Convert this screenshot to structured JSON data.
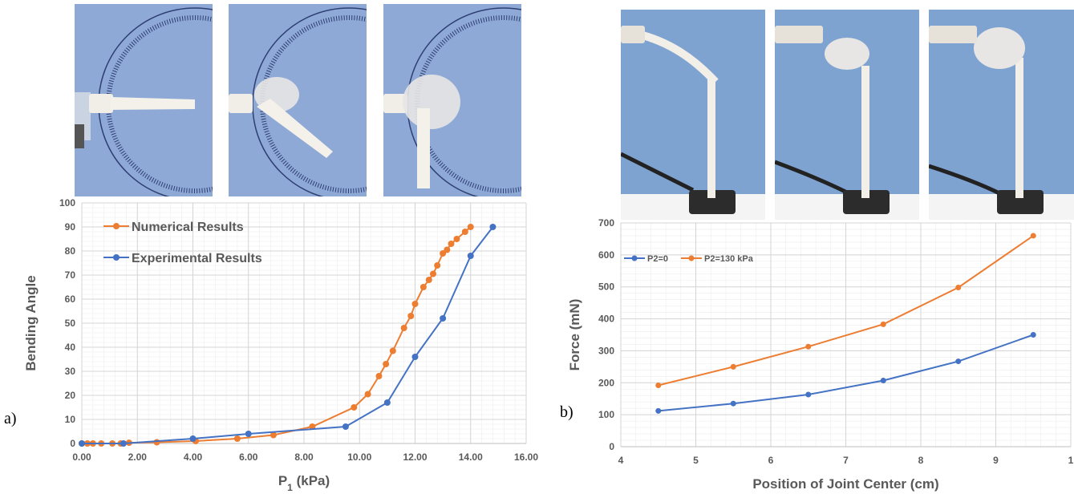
{
  "panels": {
    "a_label": "a)",
    "b_label": "b)"
  },
  "colors": {
    "numerical": "#ED7D31",
    "experimental": "#4472C4",
    "photo_bg": "#8FA8D4",
    "protractor": "#2E3E72",
    "finger": "#F4F1EA"
  },
  "chart_data": [
    {
      "type": "line",
      "title": "",
      "xlabel": "P",
      "xlabel_sub": "1",
      "xlabel_unit": " (kPa)",
      "ylabel": "Bending Angle",
      "xlim": [
        0,
        16
      ],
      "ylim": [
        0,
        100
      ],
      "xticks": [
        "0.00",
        "2.00",
        "4.00",
        "6.00",
        "8.00",
        "10.00",
        "12.00",
        "14.00",
        "16.00"
      ],
      "yticks": [
        "0",
        "10",
        "20",
        "30",
        "40",
        "50",
        "60",
        "70",
        "80",
        "90",
        "100"
      ],
      "grid": true,
      "legend_placement": "top-left",
      "series": [
        {
          "name": "Numerical Results",
          "color": "#ED7D31",
          "x": [
            0,
            0.2,
            0.4,
            0.7,
            1.1,
            1.4,
            1.7,
            2.7,
            4.1,
            5.6,
            6.9,
            8.3,
            9.8,
            10.3,
            10.7,
            10.95,
            11.2,
            11.6,
            11.85,
            12.0,
            12.3,
            12.5,
            12.65,
            12.8,
            13.0,
            13.15,
            13.3,
            13.5,
            13.8,
            14.0
          ],
          "y": [
            0,
            0,
            0,
            0,
            0,
            0,
            0.3,
            0.5,
            1,
            2,
            3.5,
            7,
            15,
            20.5,
            28,
            33,
            38.5,
            48,
            53,
            58,
            65,
            68,
            70.5,
            74,
            79,
            80.5,
            83,
            85,
            88,
            90
          ]
        },
        {
          "name": "Experimental Results",
          "color": "#4472C4",
          "x": [
            0,
            1.5,
            4.0,
            6.0,
            9.5,
            11.0,
            12.0,
            13.0,
            14.0,
            14.8
          ],
          "y": [
            0,
            0,
            2,
            4,
            7,
            17,
            36,
            52,
            78,
            90
          ]
        }
      ]
    },
    {
      "type": "line",
      "title": "",
      "xlabel": "Position of Joint Center (cm)",
      "ylabel": "Force (mN)",
      "xlim": [
        4,
        10
      ],
      "ylim": [
        0,
        700
      ],
      "xticks": [
        "4",
        "5",
        "6",
        "7",
        "8",
        "9",
        "1"
      ],
      "yticks": [
        "0",
        "100",
        "200",
        "300",
        "400",
        "500",
        "600",
        "700"
      ],
      "grid": true,
      "legend_placement": "top-left",
      "series": [
        {
          "name": "P2=0",
          "color": "#4472C4",
          "x": [
            4.5,
            5.5,
            6.5,
            7.5,
            8.5,
            9.5
          ],
          "y": [
            112,
            135,
            163,
            207,
            267,
            350
          ]
        },
        {
          "name": "P2=130 kPa",
          "color": "#ED7D31",
          "x": [
            4.5,
            5.5,
            6.5,
            7.5,
            8.5,
            9.5
          ],
          "y": [
            192,
            250,
            313,
            383,
            498,
            660
          ]
        }
      ]
    }
  ]
}
